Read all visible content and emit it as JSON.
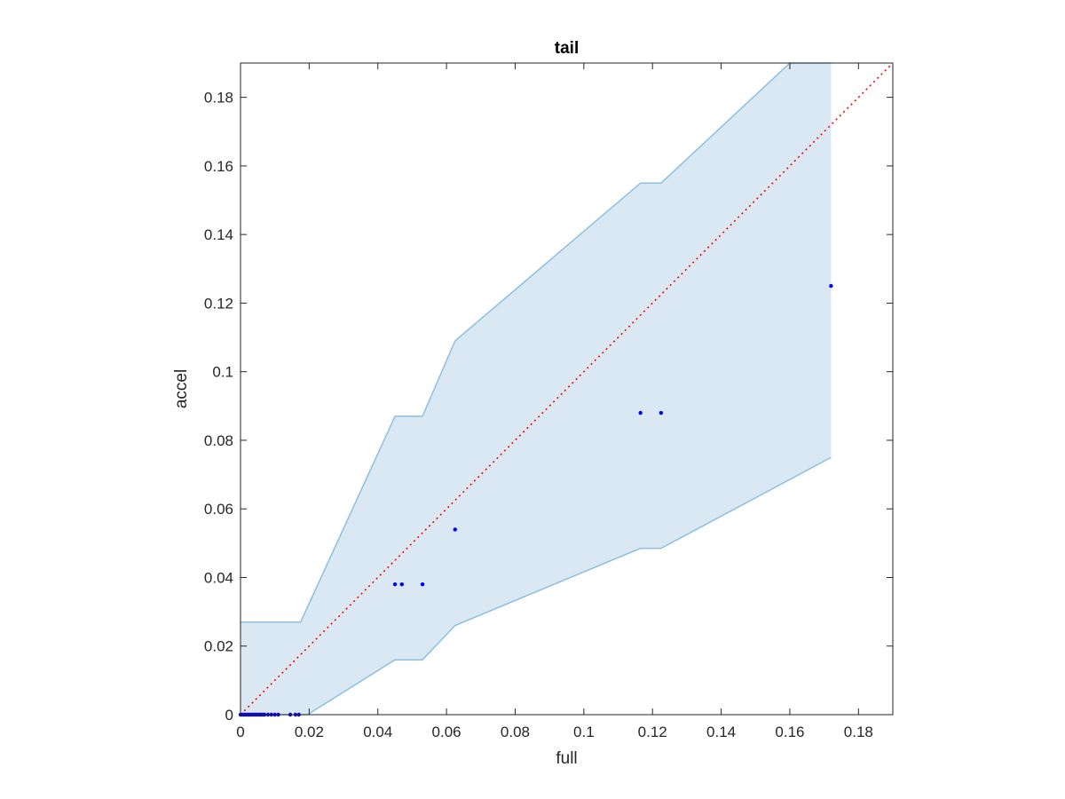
{
  "chart_data": {
    "type": "scatter",
    "title": "tail",
    "xlabel": "full",
    "ylabel": "accel",
    "xlim": [
      0,
      0.19
    ],
    "ylim": [
      0,
      0.19
    ],
    "x_ticks": [
      "0",
      "0.02",
      "0.04",
      "0.06",
      "0.08",
      "0.1",
      "0.12",
      "0.14",
      "0.16",
      "0.18"
    ],
    "y_ticks": [
      "0",
      "0.02",
      "0.04",
      "0.06",
      "0.08",
      "0.1",
      "0.12",
      "0.14",
      "0.16",
      "0.18"
    ],
    "x_tick_values": [
      0,
      0.02,
      0.04,
      0.06,
      0.08,
      0.1,
      0.12,
      0.14,
      0.16,
      0.18
    ],
    "y_tick_values": [
      0,
      0.02,
      0.04,
      0.06,
      0.08,
      0.1,
      0.12,
      0.14,
      0.16,
      0.18
    ],
    "grid": false,
    "points": {
      "color": "#0000ff",
      "x": [
        0,
        0.0005,
        0.001,
        0.0015,
        0.002,
        0.0025,
        0.003,
        0.0035,
        0.004,
        0.0045,
        0.005,
        0.0055,
        0.006,
        0.0065,
        0.007,
        0.008,
        0.009,
        0.01,
        0.011,
        0.0145,
        0.016,
        0.017,
        0.045,
        0.047,
        0.053,
        0.0625,
        0.1165,
        0.1225,
        0.172
      ],
      "y": [
        0,
        0,
        0,
        0,
        0,
        0,
        0,
        0,
        0,
        0,
        0,
        0,
        0,
        0,
        0,
        0,
        0,
        0,
        0,
        0,
        0,
        0,
        0.038,
        0.038,
        0.038,
        0.054,
        0.088,
        0.088,
        0.125
      ]
    },
    "band": {
      "fill": "#dae8f4",
      "edge": "#8cbfe0",
      "x": [
        0,
        0.0175,
        0.045,
        0.053,
        0.0625,
        0.1165,
        0.1225,
        0.16,
        0.172
      ],
      "upper": [
        0.027,
        0.027,
        0.087,
        0.087,
        0.109,
        0.155,
        0.155,
        0.19,
        0.19
      ],
      "lower_x": [
        0,
        0.0175,
        0.0195,
        0.045,
        0.053,
        0.0625,
        0.1165,
        0.1225,
        0.172
      ],
      "lower": [
        0,
        0,
        0,
        0.016,
        0.016,
        0.026,
        0.0485,
        0.0485,
        0.075
      ]
    },
    "reference_line": {
      "x": [
        0,
        0.19
      ],
      "y": [
        0,
        0.19
      ],
      "color": "#ff0000",
      "style": "dotted"
    }
  }
}
